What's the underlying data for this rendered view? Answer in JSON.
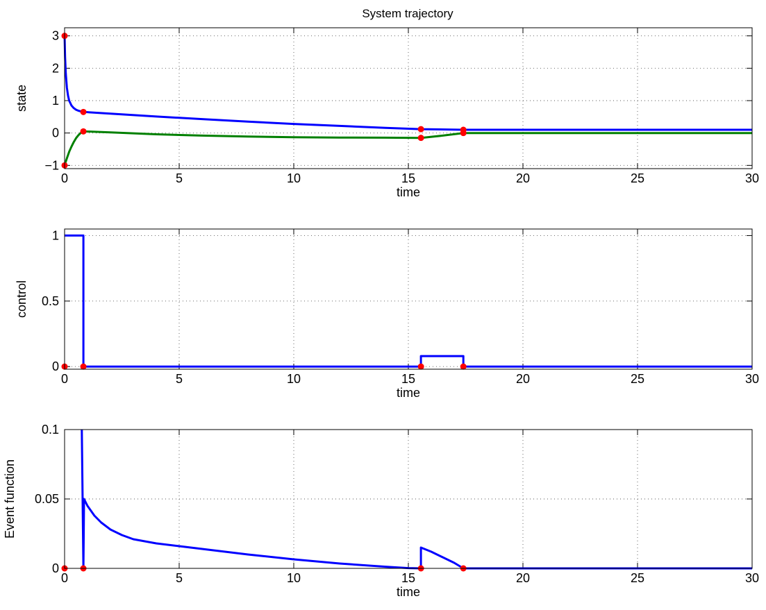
{
  "chart_data": [
    {
      "type": "line",
      "title": "System trajectory",
      "xlabel": "time",
      "ylabel": "state",
      "xlim": [
        0,
        30
      ],
      "ylim": [
        -1.1,
        3.25
      ],
      "xticks": [
        0,
        5,
        10,
        15,
        20,
        25,
        30
      ],
      "yticks": [
        -1,
        0,
        1,
        2,
        3
      ],
      "ytick_labels": [
        "−1",
        "0",
        "1",
        "2",
        "3"
      ],
      "grid": true,
      "series": [
        {
          "color": "#0000ff",
          "x": [
            0,
            0.02,
            0.05,
            0.1,
            0.15,
            0.2,
            0.3,
            0.4,
            0.5,
            0.6,
            0.7,
            0.82,
            2,
            4,
            6,
            8,
            10,
            12,
            14,
            15.55,
            17.4,
            30
          ],
          "y": [
            3.0,
            2.35,
            1.85,
            1.4,
            1.15,
            1.0,
            0.85,
            0.77,
            0.72,
            0.69,
            0.67,
            0.65,
            0.6,
            0.51,
            0.43,
            0.35,
            0.28,
            0.22,
            0.16,
            0.12,
            0.1,
            0.1
          ]
        },
        {
          "color": "#008000",
          "x": [
            0,
            0.1,
            0.2,
            0.3,
            0.4,
            0.5,
            0.6,
            0.7,
            0.82,
            2,
            4,
            6,
            8,
            10,
            12,
            14,
            15.55,
            16.5,
            17.4,
            30
          ],
          "y": [
            -1.0,
            -0.78,
            -0.58,
            -0.42,
            -0.28,
            -0.16,
            -0.07,
            0.0,
            0.05,
            0.02,
            -0.04,
            -0.08,
            -0.11,
            -0.13,
            -0.14,
            -0.145,
            -0.15,
            -0.08,
            0.0,
            0.0
          ]
        }
      ],
      "events": [
        {
          "x": 0,
          "y": 3.0
        },
        {
          "x": 0,
          "y": -1.0
        },
        {
          "x": 0.82,
          "y": 0.65
        },
        {
          "x": 0.82,
          "y": 0.05
        },
        {
          "x": 15.55,
          "y": 0.12
        },
        {
          "x": 15.55,
          "y": -0.15
        },
        {
          "x": 17.4,
          "y": 0.1
        },
        {
          "x": 17.4,
          "y": 0.0
        }
      ]
    },
    {
      "type": "line",
      "xlabel": "time",
      "ylabel": "control",
      "xlim": [
        0,
        30
      ],
      "ylim": [
        -0.02,
        1.05
      ],
      "xticks": [
        0,
        5,
        10,
        15,
        20,
        25,
        30
      ],
      "yticks": [
        0,
        0.5,
        1
      ],
      "ytick_labels": [
        "0",
        "0.5",
        "1"
      ],
      "grid": true,
      "series": [
        {
          "color": "#0000ff",
          "x": [
            0,
            0.82,
            0.82,
            15.55,
            15.55,
            17.4,
            17.4,
            30
          ],
          "y": [
            1,
            1,
            0,
            0,
            0.08,
            0.08,
            0,
            0
          ]
        }
      ],
      "events": [
        {
          "x": 0,
          "y": 0
        },
        {
          "x": 0.82,
          "y": 0
        },
        {
          "x": 15.55,
          "y": 0
        },
        {
          "x": 17.4,
          "y": 0
        }
      ]
    },
    {
      "type": "line",
      "xlabel": "time",
      "ylabel": "Event function",
      "xlim": [
        0,
        30
      ],
      "ylim": [
        0,
        0.1
      ],
      "xticks": [
        0,
        5,
        10,
        15,
        20,
        25,
        30
      ],
      "yticks": [
        0,
        0.05,
        0.1
      ],
      "ytick_labels": [
        "0",
        "0.05",
        "0.1"
      ],
      "grid": true,
      "series": [
        {
          "color": "#0000ff",
          "x": [
            0.75,
            0.82,
            0.85,
            1.0,
            1.3,
            1.6,
            2,
            2.5,
            3,
            4,
            5,
            6,
            8,
            10,
            12,
            14,
            15.0,
            15.55,
            15.55,
            16.0,
            16.5,
            17.0,
            17.4,
            30
          ],
          "y": [
            0.1,
            0.0,
            0.05,
            0.045,
            0.038,
            0.033,
            0.028,
            0.024,
            0.021,
            0.018,
            0.016,
            0.014,
            0.01,
            0.0065,
            0.0035,
            0.0012,
            0.0002,
            0.0,
            0.015,
            0.012,
            0.008,
            0.004,
            0.0,
            0.0
          ]
        }
      ],
      "events": [
        {
          "x": 0,
          "y": 0
        },
        {
          "x": 0.82,
          "y": 0
        },
        {
          "x": 15.55,
          "y": 0
        },
        {
          "x": 17.4,
          "y": 0
        }
      ]
    }
  ],
  "colors": {
    "event_marker": "#ff0000",
    "axes": "#000000",
    "grid": "#555555"
  }
}
